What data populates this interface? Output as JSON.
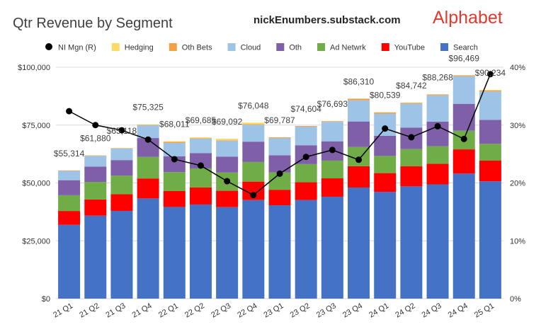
{
  "header": {
    "title": "Qtr Revenue by Segment",
    "source": "nickEnumbers.substack.com",
    "brand": "Alphabet"
  },
  "chart_data": {
    "type": "bar",
    "stacked": true,
    "secondary_line": "NI Mgn (R)",
    "categories": [
      "21 Q1",
      "21 Q2",
      "21 Q3",
      "21 Q4",
      "22 Q1",
      "22 Q2",
      "22 Q3",
      "22 Q4",
      "23 Q1",
      "23 Q2",
      "23 Q3",
      "23 Q4",
      "24 Q1",
      "24 Q2",
      "24 Q3",
      "24 Q4",
      "25 Q1"
    ],
    "totals_labels": [
      "$55,314",
      "$61,880",
      "$65,118",
      "$75,325",
      "$68,011",
      "$69,685",
      "$69,092",
      "$76,048",
      "$69,787",
      "$74,604",
      "$76,693",
      "$86,310",
      "$80,539",
      "$84,742",
      "$88,268",
      "$96,469",
      "$90,234"
    ],
    "ylim_left": [
      0,
      100000
    ],
    "ylim_right": [
      0,
      0.4
    ],
    "yticks_left": [
      "$0",
      "$25,000",
      "$50,000",
      "$75,000",
      "$100,000"
    ],
    "yticks_right": [
      "0%",
      "10%",
      "20%",
      "30%",
      "40%"
    ],
    "legend_position": "top",
    "grid": true,
    "series": [
      {
        "name": "Search",
        "color": "#4472C4",
        "values": [
          31879,
          35845,
          37926,
          43301,
          39618,
          40689,
          39539,
          42604,
          40359,
          42628,
          44026,
          48020,
          46156,
          48509,
          49385,
          54034,
          50702
        ]
      },
      {
        "name": "YouTube",
        "color": "#FF0000",
        "values": [
          6005,
          7002,
          7205,
          8633,
          6869,
          7340,
          7071,
          7963,
          6693,
          7665,
          7952,
          9200,
          8090,
          8663,
          8921,
          10473,
          8927
        ]
      },
      {
        "name": "Ad Netwrk",
        "color": "#70AD47",
        "values": [
          6800,
          7597,
          7999,
          9305,
          8174,
          8259,
          7872,
          8475,
          7496,
          7850,
          7669,
          8340,
          7413,
          7444,
          7548,
          8040,
          7256
        ]
      },
      {
        "name": "Oth",
        "color": "#7F60A8",
        "values": [
          6494,
          6623,
          6754,
          8161,
          6811,
          6553,
          6895,
          8796,
          7413,
          8142,
          8339,
          11000,
          8739,
          9311,
          10656,
          11633,
          10379
        ]
      },
      {
        "name": "Cloud",
        "color": "#9DC3E6",
        "values": [
          4047,
          4628,
          4990,
          5541,
          5821,
          6276,
          6868,
          7315,
          7454,
          8031,
          8411,
          9192,
          9574,
          10347,
          11353,
          11955,
          12260
        ]
      },
      {
        "name": "Oth Bets",
        "color": "#F4A044",
        "values": [
          198,
          192,
          182,
          181,
          440,
          193,
          209,
          226,
          288,
          285,
          297,
          657,
          495,
          365,
          388,
          400,
          450
        ]
      },
      {
        "name": "Hedging",
        "color": "#FFD966",
        "values": [
          -109,
          -7,
          62,
          203,
          278,
          375,
          638,
          669,
          84,
          3,
          -1,
          -99,
          72,
          103,
          17,
          -66,
          260
        ]
      }
    ],
    "ni_margin": [
      0.324,
      0.3,
      0.291,
      0.275,
      0.241,
      0.23,
      0.203,
      0.179,
      0.216,
      0.245,
      0.257,
      0.24,
      0.294,
      0.279,
      0.298,
      0.276,
      0.388
    ]
  }
}
